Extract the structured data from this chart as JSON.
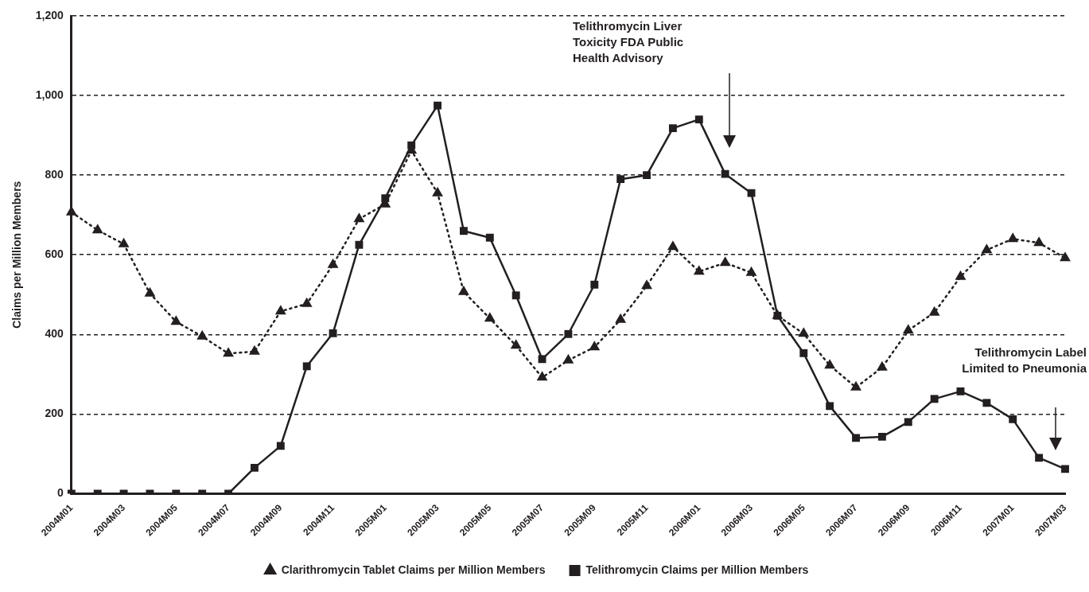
{
  "chart_data": {
    "type": "line",
    "ylabel": "Claims per Million Members",
    "categories": [
      "2004M01",
      null,
      "2004M03",
      null,
      "2004M05",
      null,
      "2004M07",
      null,
      "2004M09",
      null,
      "2004M11",
      null,
      "2005M01",
      null,
      "2005M03",
      null,
      "2005M05",
      null,
      "2005M07",
      null,
      "2005M09",
      null,
      "2005M11",
      null,
      "2006M01",
      null,
      "2006M03",
      null,
      "2006M05",
      null,
      "2006M07",
      null,
      "2006M09",
      null,
      "2006M11",
      null,
      "2007M01",
      null,
      "2007M03"
    ],
    "series": [
      {
        "name": "Clarithromycin Tablet Claims per Million Members",
        "color": "#231f20",
        "marker": "triangle",
        "line_style": "dotted",
        "values": [
          707,
          662,
          627,
          503,
          432,
          395,
          352,
          357,
          458,
          477,
          575,
          690,
          727,
          862,
          755,
          507,
          440,
          372,
          292,
          335,
          368,
          437,
          522,
          620,
          558,
          580,
          555,
          447,
          402,
          322,
          267,
          317,
          410,
          455,
          545,
          612,
          640,
          630,
          592
        ]
      },
      {
        "name": "Telithromycin Claims per Million Members",
        "color": "#231f20",
        "marker": "square",
        "line_style": "solid",
        "values": [
          0,
          0,
          0,
          0,
          0,
          0,
          0,
          65,
          120,
          320,
          403,
          625,
          742,
          875,
          975,
          660,
          643,
          498,
          338,
          401,
          525,
          790,
          800,
          918,
          940,
          803,
          755,
          447,
          353,
          220,
          140,
          143,
          180,
          238,
          257,
          228,
          187,
          90,
          62
        ]
      }
    ],
    "ylim": [
      0,
      1200
    ],
    "yticks": [
      0,
      {
        "value": 200,
        "label": "200"
      },
      {
        "value": 400,
        "label": "400"
      },
      {
        "value": 600,
        "label": "600"
      },
      {
        "value": 800,
        "label": "800"
      },
      {
        "value": 1000,
        "label": "1,000"
      },
      {
        "value": 1200,
        "label": "1,200"
      }
    ],
    "grid": "y",
    "legend": "bottom",
    "annotations": [
      "Telithromycin Liver Toxicity FDA Public Health Advisory",
      "Telithromycin Label Limited to Pneumonia"
    ]
  }
}
